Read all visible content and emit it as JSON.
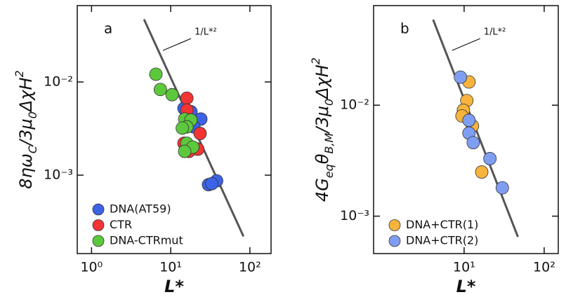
{
  "chart_data": [
    {
      "type": "scatter",
      "panel_label": "a",
      "xlabel": "L*",
      "ylabel": [
        {
          "text": "8ηω"
        },
        {
          "text": "C",
          "shift": "sub"
        },
        {
          "text": "/3μ"
        },
        {
          "text": "0",
          "shift": "sub"
        },
        {
          "text": "ΔχH"
        },
        {
          "text": "2",
          "shift": "sup"
        }
      ],
      "log_x": true,
      "log_y": true,
      "xlim": [
        0.66,
        185
      ],
      "ylim": [
        0.000144,
        0.066
      ],
      "xticks": [
        {
          "value": 1,
          "label": "10⁰"
        },
        {
          "value": 10,
          "label": "10¹"
        },
        {
          "value": 100,
          "label": "10²"
        }
      ],
      "yticks": [
        {
          "value": 0.001,
          "label": "10⁻³"
        },
        {
          "value": 0.01,
          "label": "10⁻²"
        }
      ],
      "fit_line": {
        "label": "1/L*²",
        "color": "#555555",
        "x": [
          4.6,
          83
        ],
        "y": [
          0.047,
          0.00022
        ]
      },
      "legend": "lower left",
      "series": [
        {
          "name": "DNA(AT59)",
          "color": "#3c62e6",
          "x": [
            14.7,
            18,
            24,
            19.6,
            30,
            38,
            33
          ],
          "y": [
            0.0052,
            0.0048,
            0.004,
            0.0033,
            0.00079,
            0.00087,
            0.00081
          ]
        },
        {
          "name": "CTR",
          "color": "#f23434",
          "x": [
            16,
            16,
            23.5,
            22,
            17,
            14.7
          ],
          "y": [
            0.0067,
            0.005,
            0.0028,
            0.0019,
            0.0018,
            0.0022
          ]
        },
        {
          "name": "DNA-CTRmut",
          "color": "#5cc83c",
          "x": [
            6.5,
            7.4,
            10.4,
            15,
            18,
            16,
            14,
            16,
            19,
            15
          ],
          "y": [
            0.0121,
            0.0083,
            0.0073,
            0.004,
            0.0039,
            0.0033,
            0.0032,
            0.0022,
            0.002,
            0.0018
          ]
        }
      ]
    },
    {
      "type": "scatter",
      "panel_label": "b",
      "xlabel": "L*",
      "ylabel": [
        {
          "text": "4G"
        },
        {
          "text": "eq",
          "shift": "sub"
        },
        {
          "text": "θ"
        },
        {
          "text": "B,M",
          "shift": "sub"
        },
        {
          "text": "/3μ"
        },
        {
          "text": "0",
          "shift": "sub"
        },
        {
          "text": "ΔχH"
        },
        {
          "text": "2",
          "shift": "sup"
        }
      ],
      "log_x": true,
      "log_y": true,
      "xlim": [
        0.74,
        150
      ],
      "ylim": [
        0.00046,
        0.079
      ],
      "xticks": [
        {
          "value": 10,
          "label": "10¹"
        },
        {
          "value": 100,
          "label": "10²"
        }
      ],
      "yticks": [
        {
          "value": 0.001,
          "label": "10⁻³"
        },
        {
          "value": 0.01,
          "label": "10⁻²"
        }
      ],
      "fit_line": {
        "label": "1/L*²",
        "color": "#555555",
        "x": [
          4.1,
          47
        ],
        "y": [
          0.059,
          0.00065
        ]
      },
      "legend": "lower left",
      "series": [
        {
          "name": "DNA+CTR(1)",
          "color": "#f7b43c",
          "x": [
            11.5,
            10.8,
            9.8,
            9.4,
            12.7,
            16.6
          ],
          "y": [
            0.0162,
            0.011,
            0.009,
            0.008,
            0.0065,
            0.0025
          ]
        },
        {
          "name": "DNA+CTR(2)",
          "color": "#7f9ef2",
          "x": [
            9.0,
            11.5,
            11.5,
            13,
            21,
            30
          ],
          "y": [
            0.0179,
            0.0073,
            0.0056,
            0.0046,
            0.0033,
            0.0018
          ]
        }
      ]
    }
  ]
}
